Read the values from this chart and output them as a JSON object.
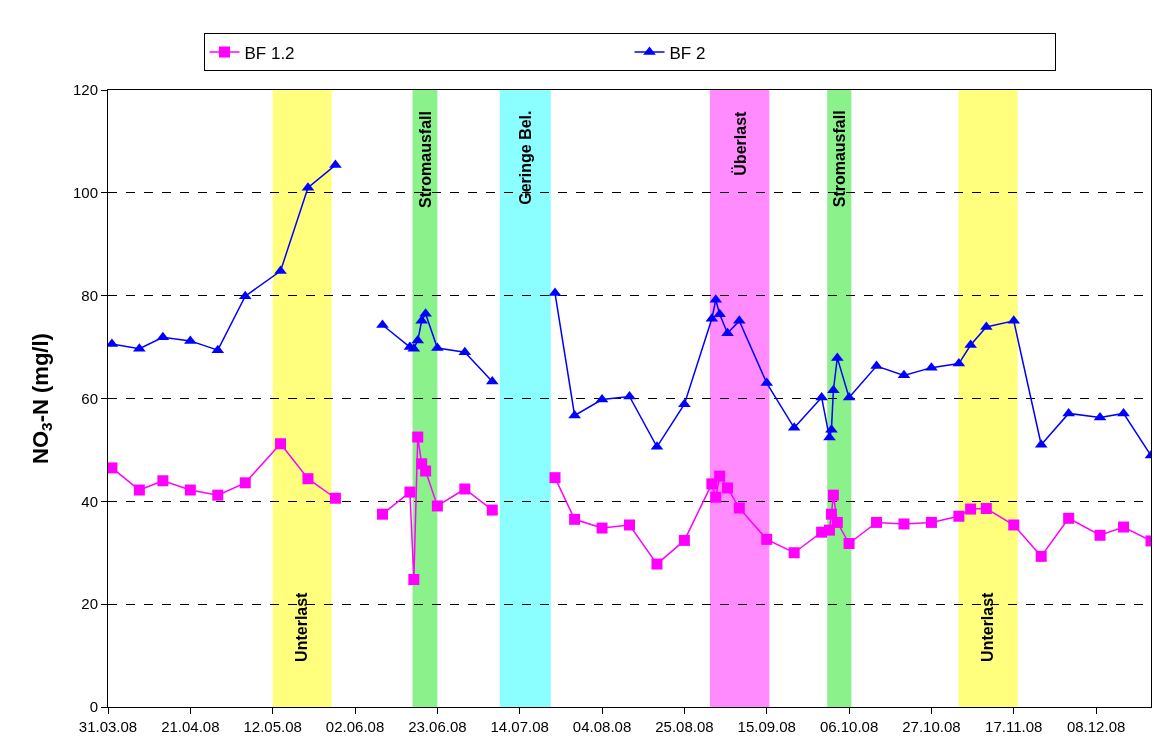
{
  "chart_data": {
    "type": "line",
    "ylabel": "NO$_{3}$-N (mg/l)",
    "series": [
      {
        "name": "BF 1.2",
        "color": "#ff00ff",
        "marker": "square",
        "x": [
          "2008-04-01",
          "2008-04-08",
          "2008-04-14",
          "2008-04-21",
          "2008-04-28",
          "2008-05-05",
          "2008-05-14",
          "2008-05-21",
          "2008-05-28",
          "2008-06-03",
          "2008-06-09",
          "2008-06-16",
          "2008-06-17",
          "2008-06-18",
          "2008-06-19",
          "2008-06-20",
          "2008-06-23",
          "2008-06-30",
          "2008-07-07",
          "2008-07-15",
          "2008-07-23",
          "2008-07-28",
          "2008-08-04",
          "2008-08-11",
          "2008-08-18",
          "2008-08-25",
          "2008-09-01",
          "2008-09-02",
          "2008-09-03",
          "2008-09-05",
          "2008-09-08",
          "2008-09-15",
          "2008-09-22",
          "2008-09-29",
          "2008-10-01",
          "2008-10-01T12:00",
          "2008-10-02",
          "2008-10-03",
          "2008-10-06",
          "2008-10-13",
          "2008-10-20",
          "2008-10-27",
          "2008-11-03",
          "2008-11-06",
          "2008-11-10",
          "2008-11-17",
          "2008-11-24",
          "2008-12-01",
          "2008-12-09",
          "2008-12-15",
          "2008-12-22"
        ],
        "values": [
          46.5,
          42.2,
          44.0,
          42.2,
          41.2,
          43.6,
          51.2,
          44.4,
          40.6,
          null,
          37.5,
          41.8,
          24.8,
          52.5,
          47.3,
          45.9,
          39.1,
          42.4,
          38.3,
          null,
          44.6,
          36.5,
          34.8,
          35.4,
          27.8,
          32.4,
          43.4,
          40.8,
          44.9,
          42.6,
          38.7,
          32.6,
          30.0,
          34.0,
          34.4,
          37.5,
          41.2,
          35.9,
          31.8,
          35.9,
          35.6,
          35.9,
          37.1,
          38.5,
          38.6,
          35.4,
          29.3,
          36.7,
          33.4,
          35.0,
          32.3
        ]
      },
      {
        "name": "BF 2",
        "color": "#0000ff",
        "marker": "triangle",
        "x": [
          "2008-04-01",
          "2008-04-08",
          "2008-04-14",
          "2008-04-21",
          "2008-04-28",
          "2008-05-05",
          "2008-05-14",
          "2008-05-21",
          "2008-05-28",
          "2008-06-03",
          "2008-06-09",
          "2008-06-16",
          "2008-06-17",
          "2008-06-18",
          "2008-06-19",
          "2008-06-20",
          "2008-06-23",
          "2008-06-30",
          "2008-07-07",
          "2008-07-15",
          "2008-07-23",
          "2008-07-28",
          "2008-08-04",
          "2008-08-11",
          "2008-08-18",
          "2008-08-25",
          "2008-09-01",
          "2008-09-02",
          "2008-09-03",
          "2008-09-05",
          "2008-09-08",
          "2008-09-15",
          "2008-09-22",
          "2008-09-29",
          "2008-10-01",
          "2008-10-01T12:00",
          "2008-10-02",
          "2008-10-03",
          "2008-10-06",
          "2008-10-13",
          "2008-10-20",
          "2008-10-27",
          "2008-11-03",
          "2008-11-06",
          "2008-11-10",
          "2008-11-17",
          "2008-11-24",
          "2008-12-01",
          "2008-12-09",
          "2008-12-15",
          "2008-12-22"
        ],
        "values": [
          70.6,
          69.7,
          71.9,
          71.2,
          69.4,
          79.9,
          84.8,
          101,
          105.4,
          null,
          74.3,
          70.0,
          69.7,
          71.3,
          75.1,
          76.5,
          69.8,
          69.0,
          63.3,
          null,
          80.5,
          56.7,
          59.8,
          60.4,
          50.6,
          58.9,
          75.5,
          79.2,
          76.4,
          72.7,
          75.1,
          63.0,
          54.3,
          60.2,
          52.4,
          53.9,
          61.6,
          67.9,
          60.2,
          66.3,
          64.5,
          66.0,
          66.8,
          70.4,
          73.9,
          75.1,
          51.0,
          57.1,
          56.3,
          57.1,
          48.9
        ]
      }
    ],
    "xlim": [
      "2008-03-31",
      "2008-12-22"
    ],
    "xticks": [
      {
        "value": "2008-03-31",
        "label": "31.03.08"
      },
      {
        "value": "2008-04-21",
        "label": "21.04.08"
      },
      {
        "value": "2008-05-12",
        "label": "12.05.08"
      },
      {
        "value": "2008-06-02",
        "label": "02.06.08"
      },
      {
        "value": "2008-06-23",
        "label": "23.06.08"
      },
      {
        "value": "2008-07-14",
        "label": "14.07.08"
      },
      {
        "value": "2008-08-04",
        "label": "04.08.08"
      },
      {
        "value": "2008-08-25",
        "label": "25.08.08"
      },
      {
        "value": "2008-09-15",
        "label": "15.09.08"
      },
      {
        "value": "2008-10-06",
        "label": "06.10.08"
      },
      {
        "value": "2008-10-27",
        "label": "27.10.08"
      },
      {
        "value": "2008-11-17",
        "label": "17.11.08"
      },
      {
        "value": "2008-12-08",
        "label": "08.12.08"
      }
    ],
    "ylim": [
      0,
      120
    ],
    "yticks": [
      0,
      20,
      40,
      60,
      80,
      100,
      120
    ],
    "grid": "y",
    "legend": "top",
    "line_style": "solid",
    "bands": [
      {
        "axis": "x",
        "from": "2008-05-12",
        "to": "2008-05-27",
        "color": "#ffff66",
        "label": "Unterlast"
      },
      {
        "axis": "x",
        "from": "2008-06-16T16:00",
        "to": "2008-06-23",
        "color": "#77ee77",
        "label": "Stromausfall"
      },
      {
        "axis": "x",
        "from": "2008-07-08T22:00",
        "to": "2008-07-21T22:00",
        "color": "#77ffff",
        "label": "Geringe Bel."
      },
      {
        "axis": "x",
        "from": "2008-08-31T12:00",
        "to": "2008-09-15T16:00",
        "color": "#ff77ff",
        "label": "Überlast"
      },
      {
        "axis": "x",
        "from": "2008-09-30T10:00",
        "to": "2008-10-06T14:00",
        "color": "#77ee77",
        "label": "Stromausfall"
      },
      {
        "axis": "x",
        "from": "2008-11-02T22:00",
        "to": "2008-11-18",
        "color": "#ffff66",
        "label": "Unterlast"
      }
    ]
  }
}
